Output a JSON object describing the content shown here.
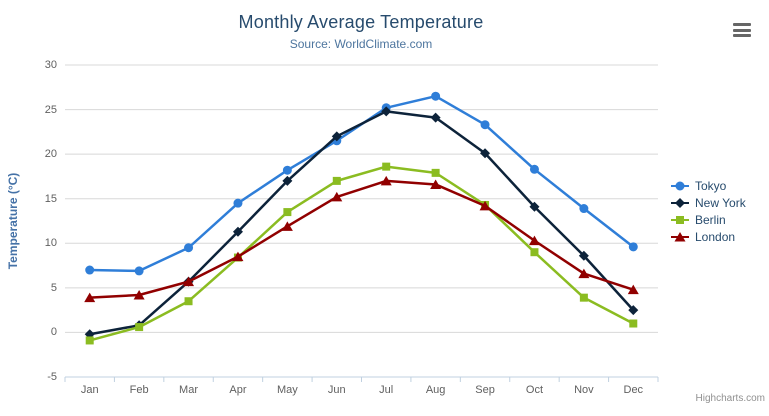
{
  "header": {
    "export_menu_icon": "hamburger-menu-icon"
  },
  "credits": {
    "label": "Highcharts.com"
  },
  "theme": {
    "title_color": "#274b6d",
    "subtitle_color": "#4d759e",
    "axis_title_color": "#4572a7",
    "axis_label_color": "#606060",
    "grid_color": "#d8d8d8",
    "axis_line_color": "#c0d0e0",
    "legend_text_color": "#274b6d",
    "credits_color": "#909090"
  },
  "chart_data": {
    "type": "line",
    "title": "Monthly Average Temperature",
    "subtitle": "Source: WorldClimate.com",
    "xlabel": "",
    "ylabel": "Temperature (°C)",
    "ylim": [
      -5,
      30
    ],
    "yticks": [
      -5,
      0,
      5,
      10,
      15,
      20,
      25,
      30
    ],
    "grid": true,
    "legend_position": "right",
    "categories": [
      "Jan",
      "Feb",
      "Mar",
      "Apr",
      "May",
      "Jun",
      "Jul",
      "Aug",
      "Sep",
      "Oct",
      "Nov",
      "Dec"
    ],
    "series": [
      {
        "name": "Tokyo",
        "color": "#2f7ed8",
        "marker": "circle",
        "values": [
          7.0,
          6.9,
          9.5,
          14.5,
          18.2,
          21.5,
          25.2,
          26.5,
          23.3,
          18.3,
          13.9,
          9.6
        ]
      },
      {
        "name": "New York",
        "color": "#0d233a",
        "marker": "diamond",
        "values": [
          -0.2,
          0.8,
          5.7,
          11.3,
          17.0,
          22.0,
          24.8,
          24.1,
          20.1,
          14.1,
          8.6,
          2.5
        ]
      },
      {
        "name": "Berlin",
        "color": "#8bbc21",
        "marker": "square",
        "values": [
          -0.9,
          0.6,
          3.5,
          8.4,
          13.5,
          17.0,
          18.6,
          17.9,
          14.3,
          9.0,
          3.9,
          1.0
        ]
      },
      {
        "name": "London",
        "color": "#910000",
        "marker": "triangle",
        "values": [
          3.9,
          4.2,
          5.7,
          8.5,
          11.9,
          15.2,
          17.0,
          16.6,
          14.2,
          10.3,
          6.6,
          4.8
        ]
      }
    ]
  }
}
